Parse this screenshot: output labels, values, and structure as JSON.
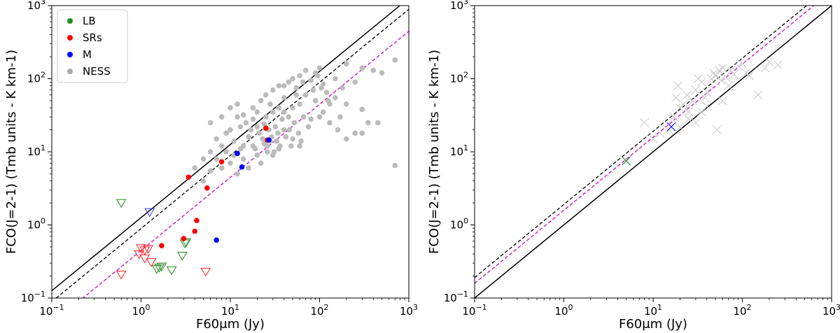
{
  "chart_data": [
    {
      "type": "scatter",
      "xscale": "log",
      "yscale": "log",
      "xlim": [
        0.1,
        1000
      ],
      "ylim": [
        0.1,
        1000
      ],
      "xlabel": "F60μm (Jy)",
      "ylabel": "FCO(J=2-1) (Tmb units - K km-1)",
      "xticks": [
        {
          "base": "10",
          "exp": "−1"
        },
        {
          "base": "10",
          "exp": "0"
        },
        {
          "base": "10",
          "exp": "1"
        },
        {
          "base": "10",
          "exp": "2"
        },
        {
          "base": "10",
          "exp": "3"
        }
      ],
      "yticks": [
        {
          "base": "10",
          "exp": "−1"
        },
        {
          "base": "10",
          "exp": "0"
        },
        {
          "base": "10",
          "exp": "1"
        },
        {
          "base": "10",
          "exp": "2"
        },
        {
          "base": "10",
          "exp": "3"
        }
      ],
      "legend": {
        "position": "top-left",
        "entries": [
          {
            "label": "LB",
            "color": "#228b22"
          },
          {
            "label": "SRs",
            "color": "#ff0000"
          },
          {
            "label": "M",
            "color": "#0000ff"
          },
          {
            "label": "NESS",
            "color": "#aaaaaa"
          }
        ]
      },
      "lines": [
        {
          "style": "solid",
          "color": "#000000",
          "log_offset": 0.1
        },
        {
          "style": "dashed",
          "color": "#000000",
          "log_offset": -0.05
        },
        {
          "style": "dashed",
          "color": "#cc00cc",
          "log_offset": -0.35
        }
      ],
      "series": [
        {
          "name": "NESS",
          "marker": "dot",
          "color": "#bbbbbb",
          "points": [
            [
              8,
              12
            ],
            [
              10,
              20
            ],
            [
              12,
              30
            ],
            [
              15,
              25
            ],
            [
              18,
              40
            ],
            [
              20,
              35
            ],
            [
              22,
              50
            ],
            [
              25,
              60
            ],
            [
              28,
              45
            ],
            [
              30,
              70
            ],
            [
              35,
              80
            ],
            [
              40,
              55
            ],
            [
              45,
              90
            ],
            [
              50,
              100
            ],
            [
              55,
              75
            ],
            [
              60,
              110
            ],
            [
              70,
              130
            ],
            [
              80,
              95
            ],
            [
              90,
              120
            ],
            [
              100,
              140
            ],
            [
              110,
              85
            ],
            [
              120,
              65
            ],
            [
              150,
              100
            ],
            [
              180,
              75
            ],
            [
              200,
              160
            ],
            [
              250,
              90
            ],
            [
              300,
              140
            ],
            [
              400,
              130
            ],
            [
              500,
              120
            ],
            [
              700,
              180
            ],
            [
              5,
              8
            ],
            [
              6,
              10
            ],
            [
              7,
              15
            ],
            [
              9,
              18
            ],
            [
              11,
              14
            ],
            [
              13,
              22
            ],
            [
              14,
              12
            ],
            [
              16,
              16
            ],
            [
              17,
              20
            ],
            [
              19,
              11
            ],
            [
              21,
              18
            ],
            [
              23,
              15
            ],
            [
              24,
              24
            ],
            [
              26,
              12
            ],
            [
              27,
              20
            ],
            [
              29,
              16
            ],
            [
              31,
              10
            ],
            [
              32,
              22
            ],
            [
              33,
              14
            ],
            [
              34,
              18
            ],
            [
              36,
              12
            ],
            [
              38,
              28
            ],
            [
              42,
              16
            ],
            [
              46,
              20
            ],
            [
              48,
              12
            ],
            [
              52,
              25
            ],
            [
              58,
              18
            ],
            [
              62,
              14
            ],
            [
              66,
              30
            ],
            [
              75,
              22
            ],
            [
              4,
              6
            ],
            [
              5,
              4
            ],
            [
              6,
              5.5
            ],
            [
              7,
              8
            ],
            [
              8,
              6
            ],
            [
              9,
              10
            ],
            [
              10,
              7
            ],
            [
              11,
              9
            ],
            [
              12,
              5
            ],
            [
              13,
              11
            ],
            [
              14,
              8
            ],
            [
              16,
              6
            ],
            [
              18,
              12
            ],
            [
              20,
              9
            ],
            [
              22,
              7
            ],
            [
              24,
              13
            ],
            [
              26,
              10
            ],
            [
              28,
              14
            ],
            [
              30,
              9
            ],
            [
              35,
              11
            ],
            [
              40,
              20
            ],
            [
              50,
              15
            ],
            [
              60,
              12
            ],
            [
              80,
              28
            ],
            [
              100,
              30
            ],
            [
              130,
              45
            ],
            [
              150,
              55
            ],
            [
              200,
              45
            ],
            [
              300,
              38
            ],
            [
              350,
              25
            ],
            [
              450,
              25
            ],
            [
              700,
              6.5
            ],
            [
              6,
              25
            ],
            [
              8,
              30
            ],
            [
              10,
              40
            ],
            [
              12,
              45
            ],
            [
              14,
              32
            ],
            [
              18,
              28
            ],
            [
              20,
              22
            ],
            [
              25,
              30
            ],
            [
              30,
              35
            ],
            [
              35,
              40
            ],
            [
              40,
              35
            ],
            [
              45,
              30
            ],
            [
              50,
              40
            ],
            [
              60,
              45
            ],
            [
              70,
              60
            ],
            [
              90,
              50
            ],
            [
              110,
              35
            ],
            [
              130,
              25
            ],
            [
              160,
              20
            ],
            [
              170,
              30
            ],
            [
              200,
              15
            ],
            [
              250,
              18
            ],
            [
              40,
              80
            ],
            [
              55,
              60
            ],
            [
              65,
              90
            ],
            [
              85,
              70
            ],
            [
              95,
              110
            ],
            [
              105,
              75
            ],
            [
              125,
              50
            ],
            [
              300,
              18
            ]
          ]
        },
        {
          "name": "LB",
          "marker": "triangle",
          "color": "#228b22",
          "points": [
            [
              0.6,
              2.0
            ],
            [
              1.5,
              0.25
            ],
            [
              1.7,
              0.27
            ],
            [
              2.2,
              0.24
            ],
            [
              2.9,
              0.38
            ],
            [
              3.1,
              0.56
            ],
            [
              3.2,
              0.58
            ],
            [
              1.6,
              0.26
            ]
          ]
        },
        {
          "name": "SRs",
          "marker": "triangle",
          "color": "#ff2222",
          "points": [
            [
              0.6,
              0.21
            ],
            [
              0.95,
              0.4
            ],
            [
              1.0,
              0.48
            ],
            [
              1.1,
              0.35
            ],
            [
              1.2,
              0.47
            ],
            [
              1.3,
              0.31
            ],
            [
              5.3,
              0.23
            ],
            [
              1.1,
              0.45
            ]
          ]
        },
        {
          "name": "M",
          "marker": "triangle",
          "color": "#3333ff",
          "points": [
            [
              1.25,
              1.5
            ]
          ]
        },
        {
          "name": "SRs",
          "marker": "dot",
          "color": "#ff0000",
          "points": [
            [
              3.4,
              4.5
            ],
            [
              5.5,
              3.2
            ],
            [
              8,
              7.3
            ],
            [
              25,
              21
            ],
            [
              26,
              14.5
            ],
            [
              1.7,
              0.52
            ],
            [
              3.0,
              0.65
            ],
            [
              4.0,
              0.82
            ],
            [
              4.2,
              1.15
            ]
          ]
        },
        {
          "name": "M",
          "marker": "dot",
          "color": "#0000ff",
          "points": [
            [
              12,
              9.5
            ],
            [
              13.5,
              6.2
            ],
            [
              27,
              14.5
            ],
            [
              7,
              0.62
            ]
          ]
        }
      ]
    },
    {
      "type": "scatter",
      "xscale": "log",
      "yscale": "log",
      "xlim": [
        0.1,
        1000
      ],
      "ylim": [
        0.1,
        1000
      ],
      "xlabel": "F60μm (Jy)",
      "ylabel": "FCO(J=2-1) (Tmb units - K km-1)",
      "xticks": [
        {
          "base": "10",
          "exp": "−1"
        },
        {
          "base": "10",
          "exp": "0"
        },
        {
          "base": "10",
          "exp": "1"
        },
        {
          "base": "10",
          "exp": "2"
        },
        {
          "base": "10",
          "exp": "3"
        }
      ],
      "yticks": [
        {
          "base": "10",
          "exp": "−1"
        },
        {
          "base": "10",
          "exp": "0"
        },
        {
          "base": "10",
          "exp": "1"
        },
        {
          "base": "10",
          "exp": "2"
        },
        {
          "base": "10",
          "exp": "3"
        }
      ],
      "lines": [
        {
          "style": "dashed",
          "color": "#000000",
          "log_offset": 0.28
        },
        {
          "style": "dashed",
          "color": "#cc00cc",
          "log_offset": 0.2
        },
        {
          "style": "solid",
          "color": "#000000",
          "log_offset": 0.0
        }
      ],
      "series": [
        {
          "name": "NESS",
          "marker": "cross",
          "color": "#cccccc",
          "points": [
            [
              8,
              25
            ],
            [
              10,
              15
            ],
            [
              12,
              18
            ],
            [
              15,
              20
            ],
            [
              17,
              30
            ],
            [
              18,
              55
            ],
            [
              19,
              80
            ],
            [
              20,
              40
            ],
            [
              22,
              45
            ],
            [
              24,
              60
            ],
            [
              25,
              35
            ],
            [
              28,
              50
            ],
            [
              30,
              70
            ],
            [
              32,
              100
            ],
            [
              35,
              90
            ],
            [
              38,
              55
            ],
            [
              40,
              65
            ],
            [
              45,
              100
            ],
            [
              48,
              120
            ],
            [
              50,
              110
            ],
            [
              52,
              20
            ],
            [
              55,
              130
            ],
            [
              58,
              95
            ],
            [
              60,
              140
            ],
            [
              65,
              105
            ],
            [
              70,
              80
            ],
            [
              75,
              130
            ],
            [
              80,
              115
            ],
            [
              90,
              150
            ],
            [
              100,
              160
            ],
            [
              110,
              120
            ],
            [
              120,
              110
            ],
            [
              150,
              60
            ],
            [
              180,
              140
            ],
            [
              200,
              170
            ],
            [
              250,
              155
            ],
            [
              20,
              22
            ],
            [
              25,
              28
            ],
            [
              30,
              25
            ],
            [
              35,
              35
            ],
            [
              40,
              42
            ],
            [
              60,
              50
            ]
          ]
        },
        {
          "name": "LB",
          "marker": "cross",
          "color": "#228b22",
          "points": [
            [
              5,
              7.5
            ]
          ]
        },
        {
          "name": "M",
          "marker": "cross",
          "color": "#0000ff",
          "points": [
            [
              16,
              22
            ]
          ]
        }
      ]
    }
  ]
}
